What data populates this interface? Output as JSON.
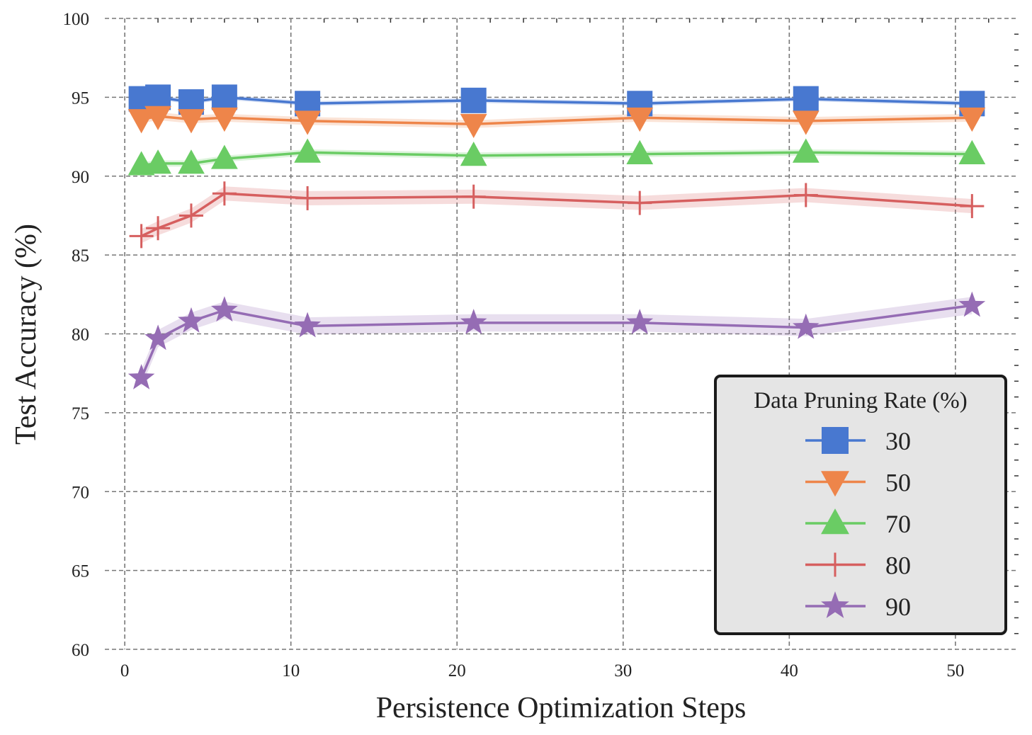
{
  "chart_data": {
    "type": "line",
    "title": "",
    "xlabel": "Persistence Optimization Steps",
    "ylabel": "Test Accuracy (%)",
    "xlim": [
      -1.2,
      53.8
    ],
    "ylim": [
      60,
      100
    ],
    "x_ticks": [
      0,
      10,
      20,
      30,
      40,
      50
    ],
    "y_ticks": [
      60,
      65,
      70,
      75,
      80,
      85,
      90,
      95,
      100
    ],
    "grid": true,
    "x": [
      1,
      2,
      4,
      6,
      11,
      21,
      31,
      41,
      51
    ],
    "legend": {
      "title": "Data Pruning Rate (%)",
      "position": "lower-right"
    },
    "series": [
      {
        "name": "30",
        "color": "#4878d0",
        "marker": "square",
        "values": [
          94.9,
          95.0,
          94.7,
          95.0,
          94.6,
          94.8,
          94.6,
          94.9,
          94.6
        ],
        "band": 0.15
      },
      {
        "name": "50",
        "color": "#ee854a",
        "marker": "triangle-down",
        "values": [
          93.6,
          93.8,
          93.6,
          93.7,
          93.5,
          93.3,
          93.7,
          93.5,
          93.7
        ],
        "band": 0.25
      },
      {
        "name": "70",
        "color": "#6acc64",
        "marker": "triangle-up",
        "values": [
          90.7,
          90.8,
          90.8,
          91.1,
          91.5,
          91.3,
          91.4,
          91.5,
          91.4
        ],
        "band": 0.2
      },
      {
        "name": "80",
        "color": "#d65f5f",
        "marker": "plus",
        "values": [
          86.2,
          86.7,
          87.5,
          88.9,
          88.6,
          88.7,
          88.3,
          88.8,
          88.1
        ],
        "band": 0.45
      },
      {
        "name": "90",
        "color": "#956cb4",
        "marker": "star",
        "values": [
          77.2,
          79.7,
          80.8,
          81.5,
          80.5,
          80.7,
          80.7,
          80.4,
          81.8
        ],
        "band": 0.55
      }
    ]
  }
}
